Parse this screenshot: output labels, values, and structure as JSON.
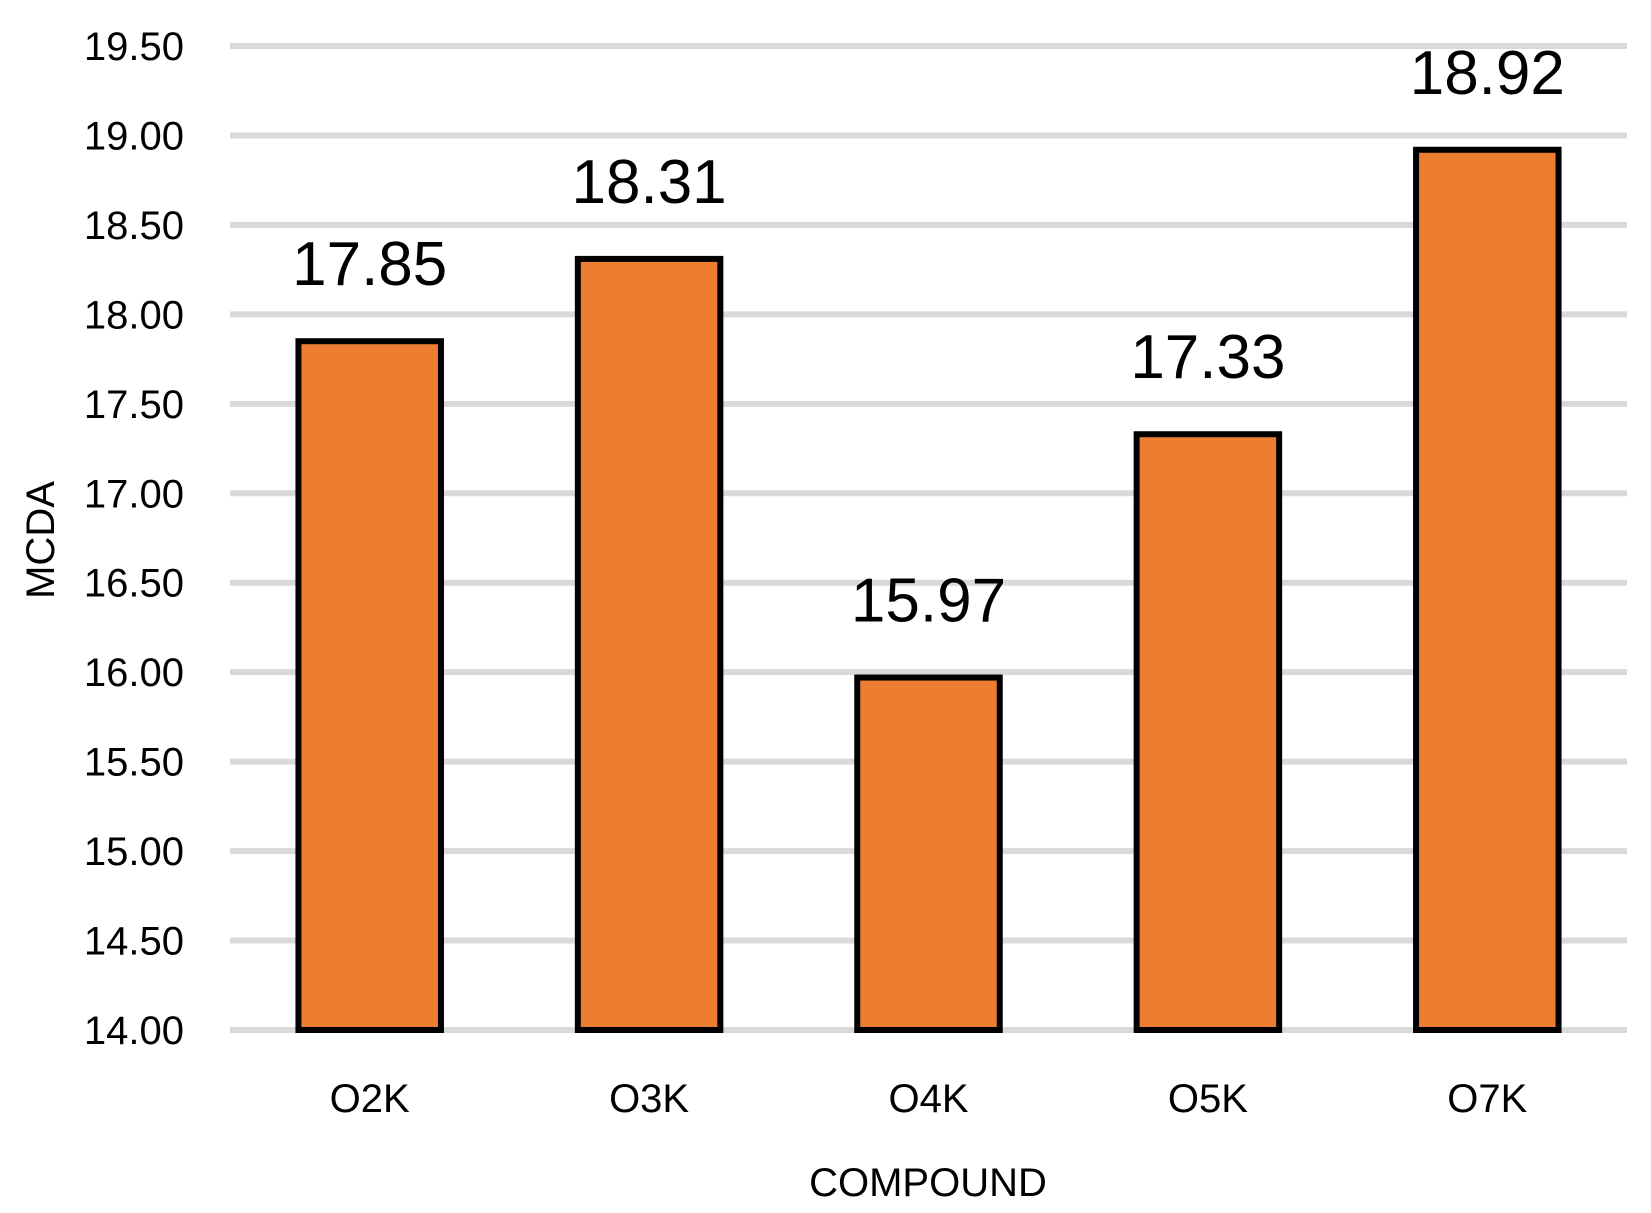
{
  "chart_data": {
    "type": "bar",
    "categories": [
      "O2K",
      "O3K",
      "O4K",
      "O5K",
      "O7K"
    ],
    "values": [
      17.85,
      18.31,
      15.97,
      17.33,
      18.92
    ],
    "data_labels": [
      "17.85",
      "18.31",
      "15.97",
      "17.33",
      "18.92"
    ],
    "title": "",
    "xlabel": "COMPOUND",
    "ylabel": "MCDA",
    "ylim": [
      14.0,
      19.5
    ],
    "yticks": [
      "14.00",
      "14.50",
      "15.00",
      "15.50",
      "16.00",
      "16.50",
      "17.00",
      "17.50",
      "18.00",
      "18.50",
      "19.00",
      "19.50"
    ],
    "bar_color": "#ED7D31",
    "bar_outline_color": "#000000",
    "grid": true,
    "legend": "none"
  }
}
